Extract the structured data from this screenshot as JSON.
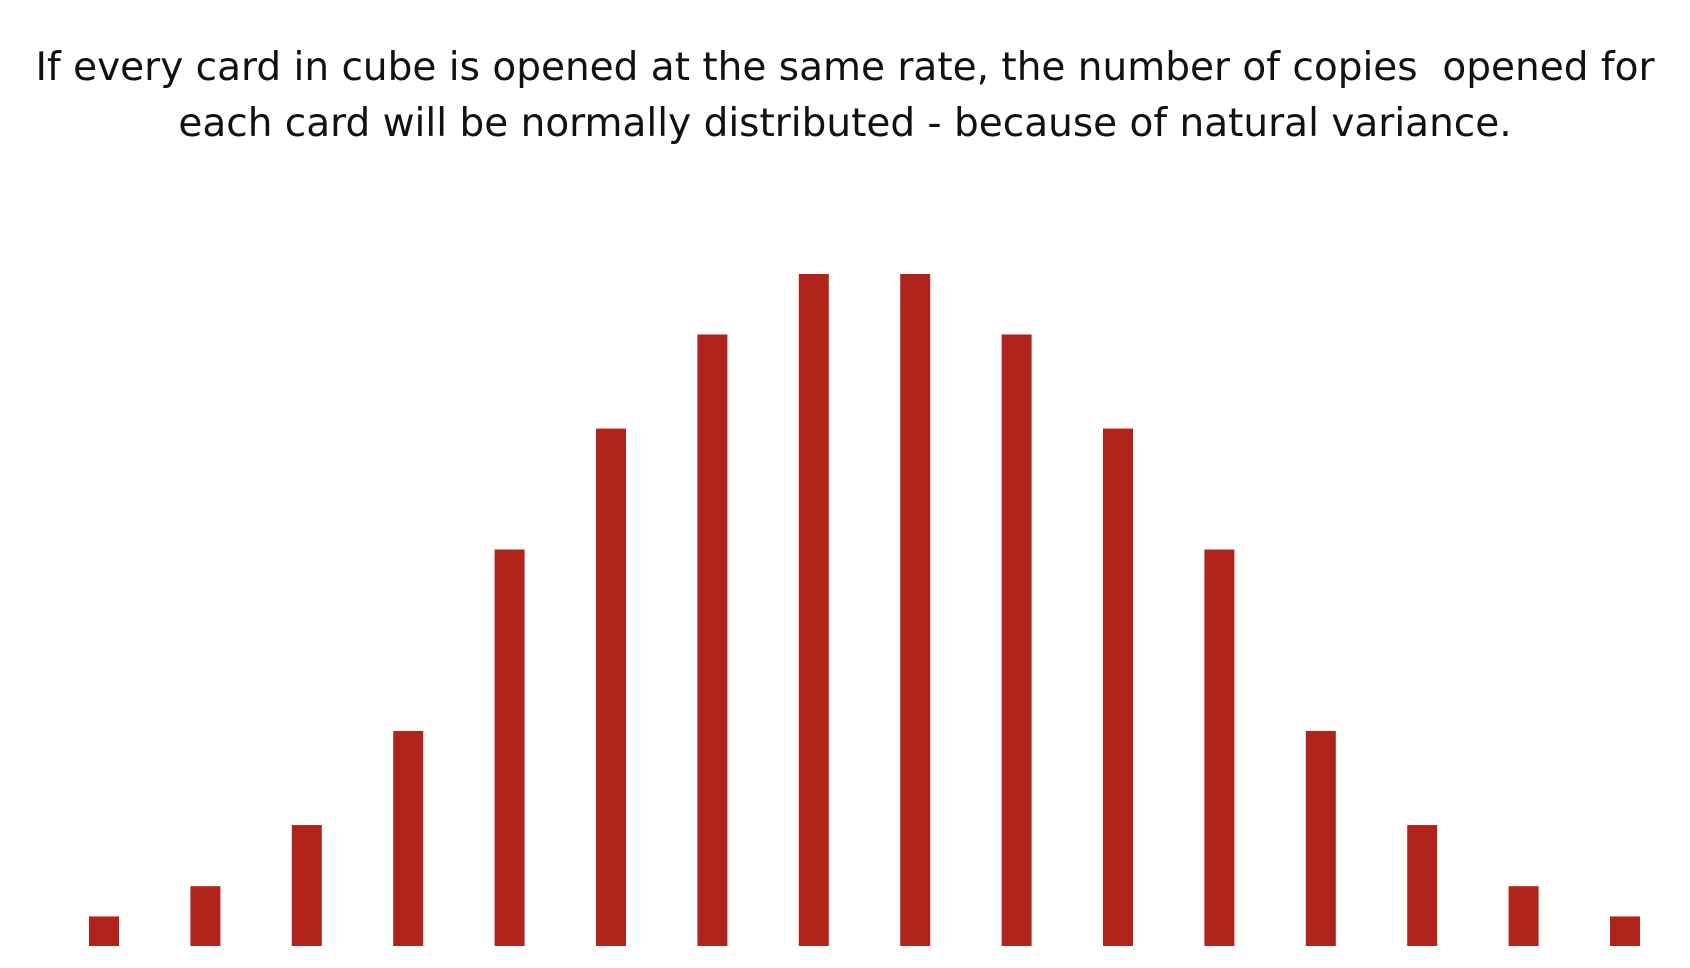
{
  "chart_data": {
    "type": "bar",
    "title": "If every card in cube is opened at the same rate, the number of copies  opened for\neach card will be normally distributed - because of natural variance.",
    "values": [
      4.4,
      8.9,
      18,
      32,
      59,
      77,
      91,
      100,
      100,
      91,
      77,
      59,
      32,
      18,
      8.9,
      4.4
    ],
    "color": "#b0241b",
    "ylim": [
      0,
      100
    ]
  }
}
